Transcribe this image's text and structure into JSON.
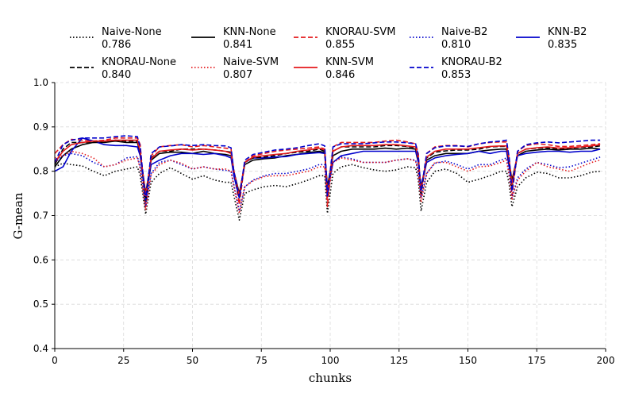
{
  "chart_data": {
    "type": "line",
    "title": "",
    "xlabel": "chunks",
    "ylabel": "G-mean",
    "xlim": [
      0,
      200
    ],
    "ylim": [
      0.4,
      1.0
    ],
    "xticks": [
      0,
      25,
      50,
      75,
      100,
      125,
      150,
      175,
      200
    ],
    "yticks": [
      0.4,
      0.5,
      0.6,
      0.7,
      0.8,
      0.9,
      1.0
    ],
    "grid": true,
    "legend_placement": "top",
    "series": [
      {
        "name": "Naive-None",
        "score": "0.786",
        "color": "#000000",
        "dash": "dotted",
        "x": [
          0,
          3,
          6,
          10,
          14,
          18,
          22,
          26,
          30,
          31,
          33,
          35,
          38,
          42,
          46,
          50,
          54,
          58,
          62,
          64,
          65,
          67,
          69,
          72,
          76,
          80,
          84,
          88,
          92,
          96,
          98,
          99,
          101,
          104,
          108,
          112,
          116,
          120,
          124,
          128,
          131,
          132,
          133,
          135,
          138,
          142,
          146,
          150,
          154,
          158,
          162,
          164,
          165,
          166,
          168,
          171,
          175,
          179,
          183,
          187,
          191,
          195,
          198
        ],
        "y": [
          0.81,
          0.818,
          0.815,
          0.812,
          0.8,
          0.79,
          0.8,
          0.805,
          0.81,
          0.79,
          0.703,
          0.775,
          0.795,
          0.808,
          0.795,
          0.782,
          0.79,
          0.78,
          0.775,
          0.775,
          0.745,
          0.69,
          0.75,
          0.758,
          0.765,
          0.768,
          0.765,
          0.772,
          0.78,
          0.79,
          0.79,
          0.705,
          0.795,
          0.81,
          0.815,
          0.808,
          0.803,
          0.8,
          0.803,
          0.81,
          0.808,
          0.78,
          0.71,
          0.775,
          0.8,
          0.805,
          0.795,
          0.775,
          0.782,
          0.79,
          0.8,
          0.8,
          0.77,
          0.72,
          0.765,
          0.785,
          0.798,
          0.795,
          0.785,
          0.785,
          0.79,
          0.798,
          0.8
        ]
      },
      {
        "name": "KNN-None",
        "score": "0.841",
        "color": "#000000",
        "dash": "solid",
        "x": [
          0,
          3,
          6,
          10,
          14,
          18,
          22,
          26,
          30,
          31,
          33,
          35,
          38,
          42,
          46,
          50,
          54,
          58,
          62,
          64,
          65,
          67,
          69,
          72,
          76,
          80,
          84,
          88,
          92,
          96,
          98,
          99,
          101,
          104,
          108,
          112,
          116,
          120,
          124,
          128,
          131,
          132,
          133,
          135,
          138,
          142,
          146,
          150,
          154,
          158,
          162,
          164,
          165,
          166,
          168,
          171,
          175,
          179,
          183,
          187,
          191,
          195,
          198
        ],
        "y": [
          0.81,
          0.835,
          0.85,
          0.86,
          0.865,
          0.865,
          0.868,
          0.865,
          0.865,
          0.84,
          0.75,
          0.825,
          0.84,
          0.843,
          0.843,
          0.84,
          0.845,
          0.84,
          0.838,
          0.835,
          0.8,
          0.75,
          0.815,
          0.825,
          0.828,
          0.83,
          0.835,
          0.838,
          0.842,
          0.845,
          0.842,
          0.765,
          0.835,
          0.845,
          0.85,
          0.85,
          0.85,
          0.852,
          0.85,
          0.852,
          0.85,
          0.82,
          0.765,
          0.825,
          0.835,
          0.84,
          0.84,
          0.84,
          0.845,
          0.848,
          0.85,
          0.85,
          0.82,
          0.78,
          0.835,
          0.845,
          0.848,
          0.85,
          0.848,
          0.85,
          0.85,
          0.852,
          0.85
        ]
      },
      {
        "name": "KNORAU-SVM",
        "score": "0.855",
        "color": "#e41a1c",
        "dash": "dashed",
        "x": [
          0,
          3,
          6,
          10,
          14,
          18,
          22,
          26,
          30,
          31,
          33,
          35,
          38,
          42,
          46,
          50,
          54,
          58,
          62,
          64,
          65,
          67,
          69,
          72,
          76,
          80,
          84,
          88,
          92,
          96,
          98,
          99,
          101,
          104,
          108,
          112,
          116,
          120,
          124,
          128,
          131,
          132,
          133,
          135,
          138,
          142,
          146,
          150,
          154,
          158,
          162,
          164,
          165,
          166,
          168,
          171,
          175,
          179,
          183,
          187,
          191,
          195,
          198
        ],
        "y": [
          0.84,
          0.86,
          0.872,
          0.87,
          0.868,
          0.87,
          0.875,
          0.875,
          0.875,
          0.86,
          0.72,
          0.835,
          0.855,
          0.858,
          0.86,
          0.855,
          0.858,
          0.855,
          0.852,
          0.85,
          0.8,
          0.725,
          0.82,
          0.835,
          0.84,
          0.845,
          0.848,
          0.85,
          0.852,
          0.855,
          0.85,
          0.72,
          0.855,
          0.865,
          0.865,
          0.865,
          0.865,
          0.868,
          0.87,
          0.866,
          0.862,
          0.84,
          0.745,
          0.84,
          0.855,
          0.858,
          0.858,
          0.855,
          0.862,
          0.865,
          0.866,
          0.866,
          0.83,
          0.745,
          0.845,
          0.858,
          0.862,
          0.86,
          0.856,
          0.856,
          0.858,
          0.86,
          0.862
        ]
      },
      {
        "name": "Naive-B2",
        "score": "0.810",
        "color": "#0000cc",
        "dash": "dotted",
        "x": [
          0,
          3,
          6,
          10,
          14,
          18,
          22,
          26,
          30,
          31,
          33,
          35,
          38,
          42,
          46,
          50,
          54,
          58,
          62,
          64,
          65,
          67,
          69,
          72,
          76,
          80,
          84,
          88,
          92,
          96,
          98,
          99,
          101,
          104,
          108,
          112,
          116,
          120,
          124,
          128,
          131,
          132,
          133,
          135,
          138,
          142,
          146,
          150,
          154,
          158,
          162,
          164,
          165,
          166,
          168,
          171,
          175,
          179,
          183,
          187,
          191,
          195,
          198
        ],
        "y": [
          0.82,
          0.835,
          0.84,
          0.835,
          0.82,
          0.81,
          0.815,
          0.83,
          0.833,
          0.81,
          0.72,
          0.795,
          0.82,
          0.825,
          0.815,
          0.805,
          0.81,
          0.805,
          0.802,
          0.8,
          0.77,
          0.71,
          0.765,
          0.78,
          0.79,
          0.795,
          0.795,
          0.8,
          0.805,
          0.815,
          0.815,
          0.74,
          0.82,
          0.832,
          0.828,
          0.82,
          0.82,
          0.82,
          0.825,
          0.828,
          0.825,
          0.8,
          0.74,
          0.795,
          0.818,
          0.823,
          0.815,
          0.805,
          0.815,
          0.815,
          0.825,
          0.83,
          0.79,
          0.74,
          0.785,
          0.805,
          0.82,
          0.815,
          0.808,
          0.81,
          0.818,
          0.826,
          0.832
        ]
      },
      {
        "name": "KNN-B2",
        "score": "0.835",
        "color": "#0000cc",
        "dash": "solid",
        "x": [
          0,
          3,
          6,
          10,
          14,
          18,
          22,
          26,
          30,
          31,
          33,
          35,
          38,
          42,
          46,
          50,
          54,
          58,
          62,
          64,
          65,
          67,
          69,
          72,
          76,
          80,
          84,
          88,
          92,
          96,
          98,
          99,
          101,
          104,
          108,
          112,
          116,
          120,
          124,
          128,
          131,
          132,
          133,
          135,
          138,
          142,
          146,
          150,
          154,
          158,
          162,
          164,
          165,
          166,
          168,
          171,
          175,
          179,
          183,
          187,
          191,
          195,
          198
        ],
        "y": [
          0.8,
          0.81,
          0.845,
          0.875,
          0.868,
          0.86,
          0.858,
          0.858,
          0.855,
          0.835,
          0.74,
          0.815,
          0.825,
          0.835,
          0.84,
          0.84,
          0.838,
          0.84,
          0.835,
          0.83,
          0.79,
          0.74,
          0.82,
          0.83,
          0.83,
          0.832,
          0.833,
          0.838,
          0.84,
          0.842,
          0.84,
          0.755,
          0.82,
          0.835,
          0.84,
          0.845,
          0.845,
          0.845,
          0.845,
          0.845,
          0.845,
          0.82,
          0.76,
          0.82,
          0.83,
          0.835,
          0.838,
          0.84,
          0.845,
          0.84,
          0.845,
          0.845,
          0.81,
          0.77,
          0.835,
          0.84,
          0.843,
          0.845,
          0.845,
          0.843,
          0.845,
          0.845,
          0.85
        ]
      },
      {
        "name": "KNORAU-None",
        "score": "0.840",
        "color": "#000000",
        "dash": "dashed",
        "x": [
          0,
          3,
          6,
          10,
          14,
          18,
          22,
          26,
          30,
          31,
          33,
          35,
          38,
          42,
          46,
          50,
          54,
          58,
          62,
          64,
          65,
          67,
          69,
          72,
          76,
          80,
          84,
          88,
          92,
          96,
          98,
          99,
          101,
          104,
          108,
          112,
          116,
          120,
          124,
          128,
          131,
          132,
          133,
          135,
          138,
          142,
          146,
          150,
          154,
          158,
          162,
          164,
          165,
          166,
          168,
          171,
          175,
          179,
          183,
          187,
          191,
          195,
          198
        ],
        "y": [
          0.815,
          0.85,
          0.865,
          0.865,
          0.865,
          0.868,
          0.87,
          0.868,
          0.868,
          0.845,
          0.73,
          0.83,
          0.845,
          0.845,
          0.85,
          0.85,
          0.85,
          0.848,
          0.845,
          0.843,
          0.8,
          0.74,
          0.82,
          0.83,
          0.832,
          0.835,
          0.84,
          0.843,
          0.845,
          0.85,
          0.845,
          0.745,
          0.845,
          0.855,
          0.855,
          0.855,
          0.855,
          0.858,
          0.858,
          0.856,
          0.853,
          0.825,
          0.75,
          0.83,
          0.843,
          0.846,
          0.848,
          0.848,
          0.85,
          0.855,
          0.856,
          0.856,
          0.82,
          0.76,
          0.84,
          0.85,
          0.852,
          0.853,
          0.85,
          0.852,
          0.854,
          0.855,
          0.857
        ]
      },
      {
        "name": "Naive-SVM",
        "score": "0.807",
        "color": "#e41a1c",
        "dash": "dotted",
        "x": [
          0,
          3,
          6,
          10,
          14,
          18,
          22,
          26,
          30,
          31,
          33,
          35,
          38,
          42,
          46,
          50,
          54,
          58,
          62,
          64,
          65,
          67,
          69,
          72,
          76,
          80,
          84,
          88,
          92,
          96,
          98,
          99,
          101,
          104,
          108,
          112,
          116,
          120,
          124,
          128,
          131,
          132,
          133,
          135,
          138,
          142,
          146,
          150,
          154,
          158,
          162,
          164,
          165,
          166,
          168,
          171,
          175,
          179,
          183,
          187,
          191,
          195,
          198
        ],
        "y": [
          0.83,
          0.835,
          0.845,
          0.84,
          0.83,
          0.81,
          0.815,
          0.825,
          0.83,
          0.805,
          0.712,
          0.792,
          0.815,
          0.825,
          0.818,
          0.805,
          0.81,
          0.805,
          0.805,
          0.8,
          0.765,
          0.705,
          0.765,
          0.778,
          0.788,
          0.79,
          0.79,
          0.795,
          0.8,
          0.81,
          0.81,
          0.735,
          0.82,
          0.83,
          0.825,
          0.82,
          0.82,
          0.82,
          0.825,
          0.828,
          0.823,
          0.795,
          0.73,
          0.795,
          0.82,
          0.82,
          0.81,
          0.8,
          0.81,
          0.812,
          0.82,
          0.825,
          0.79,
          0.735,
          0.78,
          0.8,
          0.82,
          0.81,
          0.805,
          0.8,
          0.81,
          0.82,
          0.825
        ]
      },
      {
        "name": "KNN-SVM",
        "score": "0.846",
        "color": "#e41a1c",
        "dash": "solid",
        "x": [
          0,
          3,
          6,
          10,
          14,
          18,
          22,
          26,
          30,
          31,
          33,
          35,
          38,
          42,
          46,
          50,
          54,
          58,
          62,
          64,
          65,
          67,
          69,
          72,
          76,
          80,
          84,
          88,
          92,
          96,
          98,
          99,
          101,
          104,
          108,
          112,
          116,
          120,
          124,
          128,
          131,
          132,
          133,
          135,
          138,
          142,
          146,
          150,
          154,
          158,
          162,
          164,
          165,
          166,
          168,
          171,
          175,
          179,
          183,
          187,
          191,
          195,
          198
        ],
        "y": [
          0.82,
          0.845,
          0.86,
          0.865,
          0.868,
          0.868,
          0.87,
          0.87,
          0.87,
          0.845,
          0.745,
          0.828,
          0.845,
          0.848,
          0.85,
          0.848,
          0.85,
          0.848,
          0.845,
          0.84,
          0.8,
          0.745,
          0.82,
          0.832,
          0.835,
          0.838,
          0.84,
          0.845,
          0.848,
          0.852,
          0.848,
          0.75,
          0.845,
          0.855,
          0.858,
          0.858,
          0.858,
          0.86,
          0.86,
          0.857,
          0.855,
          0.83,
          0.755,
          0.832,
          0.845,
          0.85,
          0.85,
          0.85,
          0.853,
          0.856,
          0.857,
          0.857,
          0.825,
          0.77,
          0.84,
          0.85,
          0.853,
          0.855,
          0.852,
          0.853,
          0.855,
          0.857,
          0.86
        ]
      },
      {
        "name": "KNORAU-B2",
        "score": "0.853",
        "color": "#0000cc",
        "dash": "dashed",
        "x": [
          0,
          3,
          6,
          10,
          14,
          18,
          22,
          26,
          30,
          31,
          33,
          35,
          38,
          42,
          46,
          50,
          54,
          58,
          62,
          64,
          65,
          67,
          69,
          72,
          76,
          80,
          84,
          88,
          92,
          96,
          98,
          99,
          101,
          104,
          108,
          112,
          116,
          120,
          124,
          128,
          131,
          132,
          133,
          135,
          138,
          142,
          146,
          150,
          154,
          158,
          162,
          164,
          165,
          166,
          168,
          171,
          175,
          179,
          183,
          187,
          191,
          195,
          198
        ],
        "y": [
          0.82,
          0.86,
          0.87,
          0.875,
          0.875,
          0.875,
          0.878,
          0.88,
          0.878,
          0.855,
          0.735,
          0.84,
          0.855,
          0.857,
          0.86,
          0.858,
          0.86,
          0.858,
          0.857,
          0.853,
          0.8,
          0.74,
          0.825,
          0.838,
          0.843,
          0.848,
          0.85,
          0.853,
          0.858,
          0.862,
          0.857,
          0.745,
          0.855,
          0.862,
          0.862,
          0.862,
          0.864,
          0.866,
          0.866,
          0.864,
          0.862,
          0.835,
          0.755,
          0.84,
          0.853,
          0.857,
          0.857,
          0.856,
          0.862,
          0.866,
          0.868,
          0.87,
          0.83,
          0.755,
          0.845,
          0.86,
          0.864,
          0.866,
          0.864,
          0.866,
          0.868,
          0.87,
          0.87
        ]
      }
    ]
  }
}
